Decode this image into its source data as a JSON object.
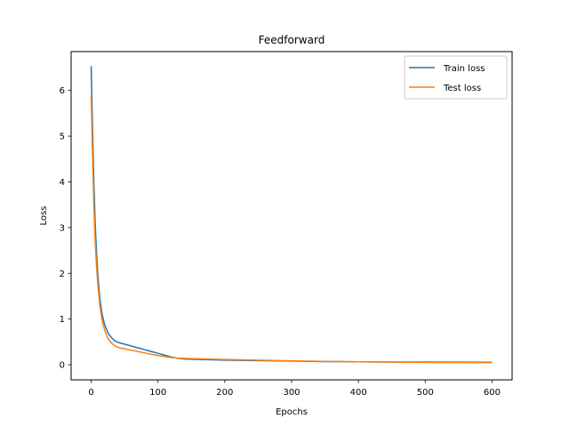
{
  "chart_data": {
    "type": "line",
    "title": "Feedforward",
    "xlabel": "Epochs",
    "ylabel": "Loss",
    "xlim": [
      -30,
      630
    ],
    "ylim": [
      -0.33,
      6.85
    ],
    "x_ticks": [
      0,
      100,
      200,
      300,
      400,
      500,
      600
    ],
    "y_ticks": [
      0,
      1,
      2,
      3,
      4,
      5,
      6
    ],
    "grid": false,
    "legend_position": "upper right",
    "series": [
      {
        "name": "Train loss",
        "color": "#1f77b4",
        "x": [
          0,
          2,
          4,
          6,
          8,
          10,
          13,
          16,
          20,
          25,
          30,
          35,
          40,
          45,
          50,
          60,
          70,
          80,
          90,
          100,
          110,
          120,
          130,
          140,
          150,
          175,
          200,
          250,
          300,
          350,
          400,
          450,
          500,
          550,
          600
        ],
        "y": [
          6.53,
          5.2,
          4.0,
          3.1,
          2.45,
          1.95,
          1.45,
          1.13,
          0.88,
          0.7,
          0.6,
          0.53,
          0.49,
          0.47,
          0.45,
          0.41,
          0.37,
          0.33,
          0.29,
          0.25,
          0.21,
          0.17,
          0.14,
          0.125,
          0.12,
          0.11,
          0.1,
          0.09,
          0.08,
          0.07,
          0.065,
          0.06,
          0.058,
          0.057,
          0.055
        ]
      },
      {
        "name": "Test loss",
        "color": "#ff7f0e",
        "x": [
          0,
          2,
          4,
          6,
          8,
          10,
          13,
          16,
          20,
          25,
          30,
          35,
          40,
          45,
          50,
          60,
          70,
          80,
          90,
          100,
          110,
          120,
          130,
          140,
          150,
          175,
          200,
          250,
          300,
          350,
          400,
          450,
          500,
          550,
          600
        ],
        "y": [
          5.88,
          4.6,
          3.5,
          2.7,
          2.15,
          1.75,
          1.3,
          1.0,
          0.76,
          0.58,
          0.48,
          0.42,
          0.38,
          0.36,
          0.35,
          0.32,
          0.29,
          0.26,
          0.23,
          0.2,
          0.18,
          0.16,
          0.145,
          0.14,
          0.135,
          0.125,
          0.115,
          0.1,
          0.085,
          0.075,
          0.065,
          0.058,
          0.052,
          0.05,
          0.048
        ]
      }
    ]
  }
}
